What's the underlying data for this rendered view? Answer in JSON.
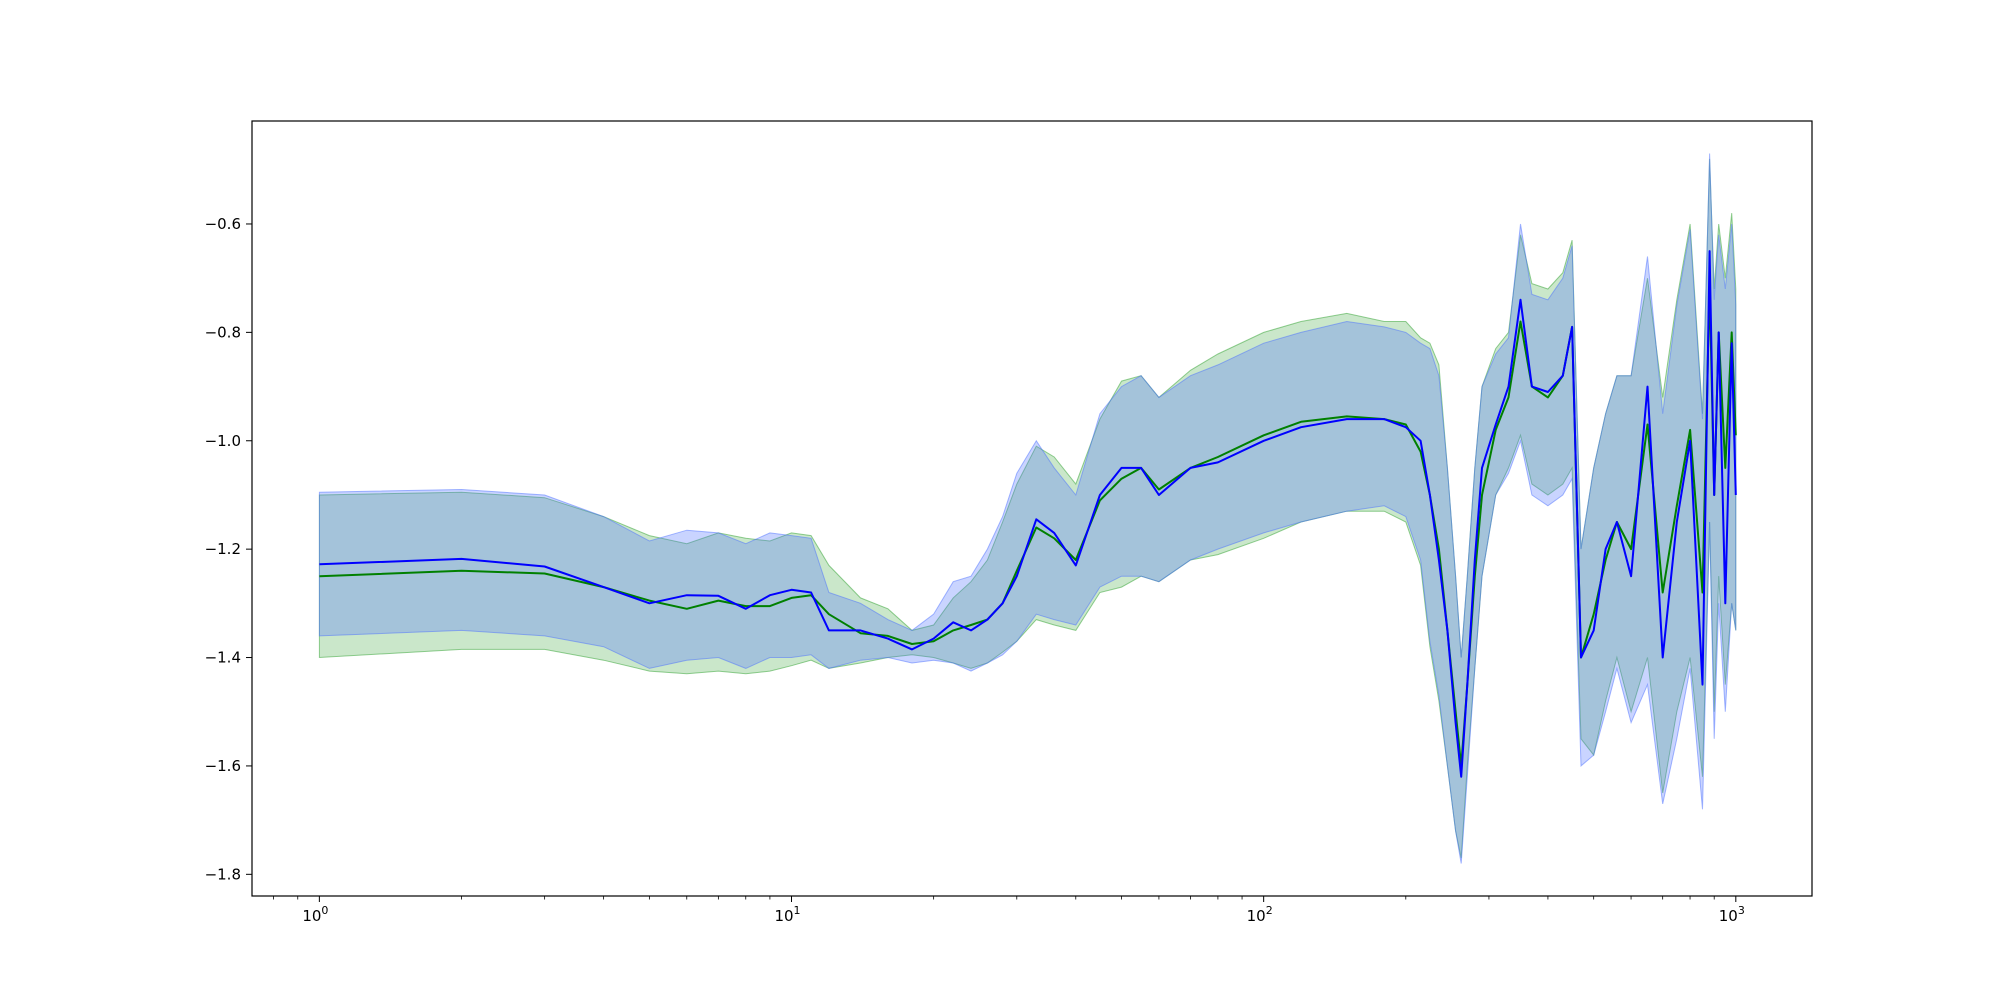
{
  "chart_data": {
    "type": "line",
    "title": "",
    "xlabel": "",
    "ylabel": "",
    "xscale": "log",
    "xlim": [
      0.72,
      1450
    ],
    "ylim": [
      -1.84,
      -0.41
    ],
    "grid": false,
    "legend": "none",
    "x_ticks": [
      {
        "value": 1,
        "base": "10",
        "exp": "0"
      },
      {
        "value": 10,
        "base": "10",
        "exp": "1"
      },
      {
        "value": 100,
        "base": "10",
        "exp": "2"
      },
      {
        "value": 1000,
        "base": "10",
        "exp": "3"
      }
    ],
    "y_ticks": [
      {
        "value": -0.6,
        "label": "−0.6"
      },
      {
        "value": -0.8,
        "label": "−0.8"
      },
      {
        "value": -1.0,
        "label": "−1.0"
      },
      {
        "value": -1.2,
        "label": "−1.2"
      },
      {
        "value": -1.4,
        "label": "−1.4"
      },
      {
        "value": -1.6,
        "label": "−1.6"
      },
      {
        "value": -1.8,
        "label": "−1.8"
      }
    ],
    "series": [
      {
        "color": "#008000",
        "band_color": "#2ca02c",
        "x": [
          1,
          2,
          3,
          4,
          5,
          6,
          7,
          8,
          9,
          10,
          11,
          12,
          14,
          16,
          18,
          20,
          22,
          24,
          26,
          28,
          30,
          33,
          36,
          40,
          45,
          50,
          55,
          60,
          70,
          80,
          100,
          120,
          150,
          180,
          200,
          215,
          225,
          235,
          245,
          255,
          262,
          270,
          280,
          290,
          310,
          330,
          350,
          370,
          400,
          430,
          450,
          470,
          500,
          530,
          560,
          600,
          650,
          700,
          750,
          800,
          850,
          880,
          900,
          920,
          950,
          980,
          1000
        ],
        "values": [
          -1.25,
          -1.24,
          -1.245,
          -1.27,
          -1.295,
          -1.31,
          -1.295,
          -1.305,
          -1.305,
          -1.29,
          -1.285,
          -1.32,
          -1.355,
          -1.36,
          -1.375,
          -1.37,
          -1.35,
          -1.34,
          -1.33,
          -1.3,
          -1.24,
          -1.16,
          -1.18,
          -1.22,
          -1.11,
          -1.07,
          -1.05,
          -1.09,
          -1.05,
          -1.03,
          -0.99,
          -0.965,
          -0.955,
          -0.96,
          -0.97,
          -1.02,
          -1.1,
          -1.2,
          -1.35,
          -1.5,
          -1.6,
          -1.45,
          -1.25,
          -1.1,
          -0.98,
          -0.92,
          -0.78,
          -0.9,
          -0.92,
          -0.88,
          -0.79,
          -1.4,
          -1.32,
          -1.22,
          -1.15,
          -1.2,
          -0.97,
          -1.28,
          -1.12,
          -0.98,
          -1.28,
          -0.71,
          -1.1,
          -0.8,
          -1.05,
          -0.8,
          -0.99
        ],
        "lower": [
          -1.4,
          -1.385,
          -1.385,
          -1.405,
          -1.425,
          -1.43,
          -1.425,
          -1.43,
          -1.425,
          -1.415,
          -1.405,
          -1.42,
          -1.41,
          -1.4,
          -1.395,
          -1.4,
          -1.41,
          -1.42,
          -1.41,
          -1.39,
          -1.37,
          -1.33,
          -1.34,
          -1.35,
          -1.28,
          -1.27,
          -1.25,
          -1.26,
          -1.22,
          -1.21,
          -1.18,
          -1.15,
          -1.13,
          -1.13,
          -1.15,
          -1.23,
          -1.38,
          -1.48,
          -1.6,
          -1.72,
          -1.77,
          -1.6,
          -1.42,
          -1.25,
          -1.1,
          -1.05,
          -0.99,
          -1.08,
          -1.1,
          -1.08,
          -1.05,
          -1.55,
          -1.58,
          -1.48,
          -1.4,
          -1.5,
          -1.4,
          -1.65,
          -1.5,
          -1.4,
          -1.62,
          -1.15,
          -1.5,
          -1.25,
          -1.45,
          -1.3,
          -1.35
        ],
        "upper": [
          -1.1,
          -1.095,
          -1.105,
          -1.14,
          -1.175,
          -1.19,
          -1.17,
          -1.18,
          -1.185,
          -1.17,
          -1.175,
          -1.23,
          -1.29,
          -1.31,
          -1.35,
          -1.34,
          -1.29,
          -1.26,
          -1.22,
          -1.15,
          -1.08,
          -1.01,
          -1.03,
          -1.08,
          -0.96,
          -0.89,
          -0.88,
          -0.92,
          -0.87,
          -0.84,
          -0.8,
          -0.78,
          -0.765,
          -0.78,
          -0.78,
          -0.81,
          -0.82,
          -0.86,
          -1.05,
          -1.25,
          -1.4,
          -1.25,
          -1.05,
          -0.9,
          -0.83,
          -0.8,
          -0.62,
          -0.71,
          -0.72,
          -0.69,
          -0.63,
          -1.2,
          -1.05,
          -0.95,
          -0.88,
          -0.88,
          -0.7,
          -0.92,
          -0.74,
          -0.6,
          -0.95,
          -0.48,
          -0.72,
          -0.6,
          -0.7,
          -0.58,
          -0.72
        ]
      },
      {
        "color": "#0000ff",
        "band_color": "#4b6fff",
        "x": [
          1,
          2,
          3,
          4,
          5,
          6,
          7,
          8,
          9,
          10,
          11,
          12,
          14,
          16,
          18,
          20,
          22,
          24,
          26,
          28,
          30,
          33,
          36,
          40,
          45,
          50,
          55,
          60,
          70,
          80,
          100,
          120,
          150,
          180,
          200,
          215,
          225,
          235,
          245,
          255,
          262,
          270,
          280,
          290,
          310,
          330,
          350,
          370,
          400,
          430,
          450,
          470,
          500,
          530,
          560,
          600,
          650,
          700,
          750,
          800,
          850,
          880,
          900,
          920,
          950,
          980,
          1000
        ],
        "values": [
          -1.228,
          -1.218,
          -1.232,
          -1.27,
          -1.3,
          -1.285,
          -1.286,
          -1.31,
          -1.285,
          -1.275,
          -1.28,
          -1.35,
          -1.35,
          -1.365,
          -1.385,
          -1.365,
          -1.335,
          -1.35,
          -1.33,
          -1.3,
          -1.25,
          -1.145,
          -1.17,
          -1.23,
          -1.1,
          -1.05,
          -1.05,
          -1.1,
          -1.05,
          -1.04,
          -1.0,
          -0.975,
          -0.96,
          -0.96,
          -0.975,
          -1.0,
          -1.1,
          -1.22,
          -1.35,
          -1.52,
          -1.62,
          -1.45,
          -1.22,
          -1.05,
          -0.97,
          -0.9,
          -0.74,
          -0.9,
          -0.91,
          -0.88,
          -0.79,
          -1.4,
          -1.35,
          -1.2,
          -1.15,
          -1.25,
          -0.9,
          -1.4,
          -1.15,
          -1.0,
          -1.45,
          -0.65,
          -1.1,
          -0.8,
          -1.3,
          -0.82,
          -1.1
        ],
        "lower": [
          -1.36,
          -1.35,
          -1.36,
          -1.38,
          -1.42,
          -1.405,
          -1.4,
          -1.42,
          -1.4,
          -1.4,
          -1.395,
          -1.42,
          -1.405,
          -1.4,
          -1.41,
          -1.405,
          -1.41,
          -1.425,
          -1.41,
          -1.395,
          -1.37,
          -1.32,
          -1.33,
          -1.34,
          -1.27,
          -1.25,
          -1.25,
          -1.26,
          -1.22,
          -1.2,
          -1.17,
          -1.15,
          -1.13,
          -1.12,
          -1.14,
          -1.22,
          -1.37,
          -1.47,
          -1.6,
          -1.72,
          -1.78,
          -1.62,
          -1.42,
          -1.25,
          -1.1,
          -1.06,
          -1.0,
          -1.1,
          -1.12,
          -1.1,
          -1.07,
          -1.6,
          -1.58,
          -1.5,
          -1.42,
          -1.52,
          -1.45,
          -1.67,
          -1.55,
          -1.42,
          -1.68,
          -1.15,
          -1.55,
          -1.3,
          -1.5,
          -1.3,
          -1.35
        ],
        "upper": [
          -1.095,
          -1.09,
          -1.1,
          -1.14,
          -1.185,
          -1.165,
          -1.17,
          -1.19,
          -1.17,
          -1.175,
          -1.18,
          -1.28,
          -1.3,
          -1.33,
          -1.35,
          -1.32,
          -1.26,
          -1.25,
          -1.2,
          -1.14,
          -1.06,
          -1.0,
          -1.05,
          -1.1,
          -0.95,
          -0.9,
          -0.88,
          -0.92,
          -0.88,
          -0.86,
          -0.82,
          -0.8,
          -0.78,
          -0.79,
          -0.8,
          -0.82,
          -0.83,
          -0.88,
          -1.05,
          -1.25,
          -1.4,
          -1.25,
          -1.05,
          -0.9,
          -0.84,
          -0.81,
          -0.6,
          -0.73,
          -0.74,
          -0.7,
          -0.64,
          -1.2,
          -1.05,
          -0.95,
          -0.88,
          -0.88,
          -0.66,
          -0.95,
          -0.75,
          -0.61,
          -0.96,
          -0.47,
          -0.74,
          -0.62,
          -0.72,
          -0.6,
          -0.75
        ]
      }
    ]
  }
}
